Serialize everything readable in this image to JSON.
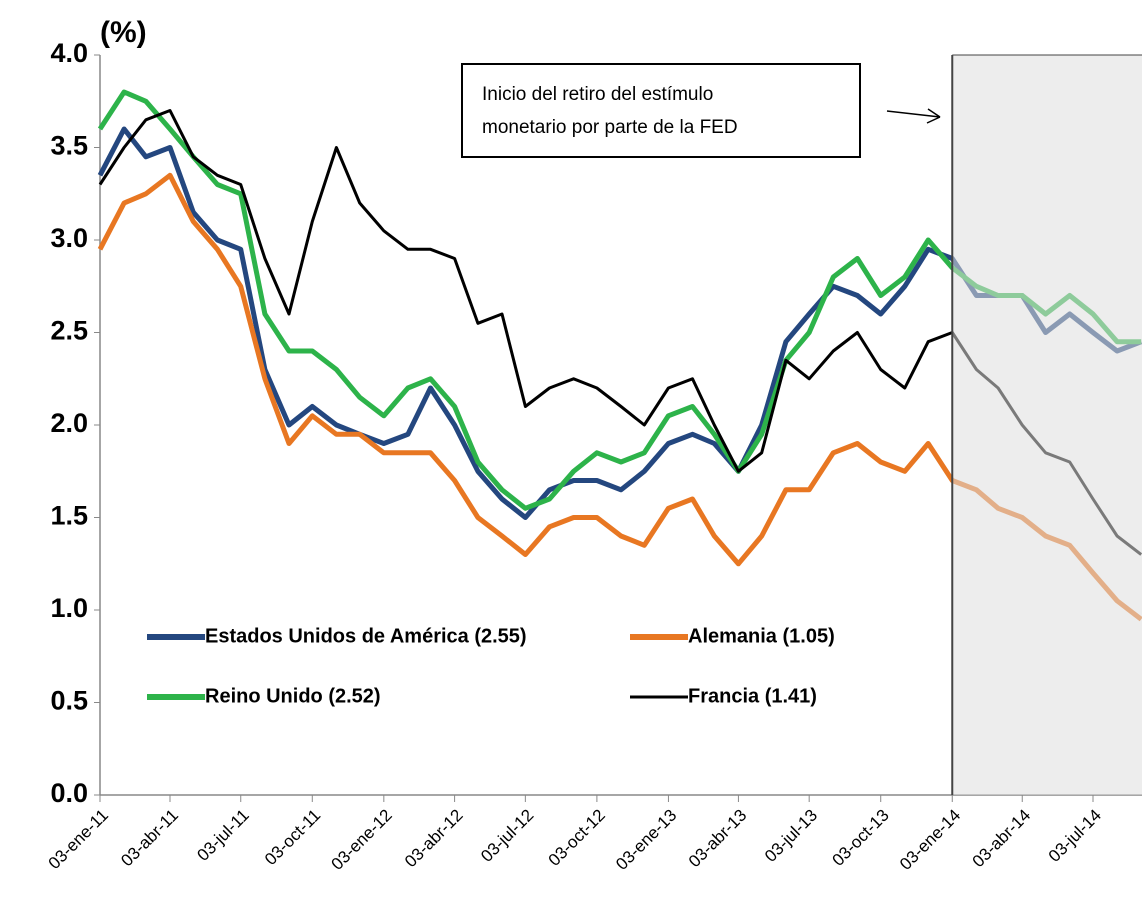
{
  "chart_data": {
    "type": "line",
    "y_label": "(%)",
    "annotation": "Inicio del retiro del estímulo monetario por parte de la FED",
    "annotation_lines": [
      "Inicio del retiro del estímulo",
      "monetario por parte de la FED"
    ],
    "shaded_from": "2014-01-03",
    "x": [
      "2011-01-03",
      "2011-02-03",
      "2011-03-03",
      "2011-04-03",
      "2011-05-03",
      "2011-06-03",
      "2011-07-03",
      "2011-08-03",
      "2011-09-03",
      "2011-10-03",
      "2011-11-03",
      "2011-12-03",
      "2012-01-03",
      "2012-02-03",
      "2012-03-03",
      "2012-04-03",
      "2012-05-03",
      "2012-06-03",
      "2012-07-03",
      "2012-08-03",
      "2012-09-03",
      "2012-10-03",
      "2012-11-03",
      "2012-12-03",
      "2013-01-03",
      "2013-02-03",
      "2013-03-03",
      "2013-04-03",
      "2013-05-03",
      "2013-06-03",
      "2013-07-03",
      "2013-08-03",
      "2013-09-03",
      "2013-10-03",
      "2013-11-03",
      "2013-12-03",
      "2014-01-03",
      "2014-02-03",
      "2014-03-03",
      "2014-04-03",
      "2014-05-03",
      "2014-06-03",
      "2014-07-03",
      "2014-08-03",
      "2014-09-03"
    ],
    "series": [
      {
        "name": "Estados Unidos de América (2.55)",
        "color": "#24477f",
        "values": [
          3.35,
          3.6,
          3.45,
          3.5,
          3.15,
          3.0,
          2.95,
          2.3,
          2.0,
          2.1,
          2.0,
          1.95,
          1.9,
          1.95,
          2.2,
          2.0,
          1.75,
          1.6,
          1.5,
          1.65,
          1.7,
          1.7,
          1.65,
          1.75,
          1.9,
          1.95,
          1.9,
          1.75,
          2.0,
          2.45,
          2.6,
          2.75,
          2.7,
          2.6,
          2.75,
          2.95,
          2.9,
          2.7,
          2.7,
          2.7,
          2.5,
          2.6,
          2.5,
          2.4,
          2.45
        ]
      },
      {
        "name": "Alemania (1.05)",
        "color": "#e87722",
        "values": [
          2.95,
          3.2,
          3.25,
          3.35,
          3.1,
          2.95,
          2.75,
          2.25,
          1.9,
          2.05,
          1.95,
          1.95,
          1.85,
          1.85,
          1.85,
          1.7,
          1.5,
          1.4,
          1.3,
          1.45,
          1.5,
          1.5,
          1.4,
          1.35,
          1.55,
          1.6,
          1.4,
          1.25,
          1.4,
          1.65,
          1.65,
          1.85,
          1.9,
          1.8,
          1.75,
          1.9,
          1.7,
          1.65,
          1.55,
          1.5,
          1.4,
          1.35,
          1.2,
          1.05,
          0.95
        ]
      },
      {
        "name": "Reino Unido (2.52)",
        "color": "#2db34a",
        "values": [
          3.6,
          3.8,
          3.75,
          3.6,
          3.45,
          3.3,
          3.25,
          2.6,
          2.4,
          2.4,
          2.3,
          2.15,
          2.05,
          2.2,
          2.25,
          2.1,
          1.8,
          1.65,
          1.55,
          1.6,
          1.75,
          1.85,
          1.8,
          1.85,
          2.05,
          2.1,
          1.95,
          1.75,
          1.95,
          2.35,
          2.5,
          2.8,
          2.9,
          2.7,
          2.8,
          3.0,
          2.85,
          2.75,
          2.7,
          2.7,
          2.6,
          2.7,
          2.6,
          2.45,
          2.45
        ]
      },
      {
        "name": "Francia (1.41)",
        "color": "#000000",
        "values": [
          3.3,
          3.5,
          3.65,
          3.7,
          3.45,
          3.35,
          3.3,
          2.9,
          2.6,
          3.1,
          3.5,
          3.2,
          3.05,
          2.95,
          2.95,
          2.9,
          2.55,
          2.6,
          2.1,
          2.2,
          2.25,
          2.2,
          2.1,
          2.0,
          2.2,
          2.25,
          2.0,
          1.75,
          1.85,
          2.35,
          2.25,
          2.4,
          2.5,
          2.3,
          2.2,
          2.45,
          2.5,
          2.3,
          2.2,
          2.0,
          1.85,
          1.8,
          1.6,
          1.4,
          1.3
        ]
      }
    ],
    "xlim": [
      "2011-01-03",
      "2014-09-04"
    ],
    "xticks": [
      {
        "value": "2011-01-03",
        "label": "03-ene-11"
      },
      {
        "value": "2011-04-03",
        "label": "03-abr-11"
      },
      {
        "value": "2011-07-03",
        "label": "03-jul-11"
      },
      {
        "value": "2011-10-03",
        "label": "03-oct-11"
      },
      {
        "value": "2012-01-03",
        "label": "03-ene-12"
      },
      {
        "value": "2012-04-03",
        "label": "03-abr-12"
      },
      {
        "value": "2012-07-03",
        "label": "03-jul-12"
      },
      {
        "value": "2012-10-03",
        "label": "03-oct-12"
      },
      {
        "value": "2013-01-03",
        "label": "03-ene-13"
      },
      {
        "value": "2013-04-03",
        "label": "03-abr-13"
      },
      {
        "value": "2013-07-03",
        "label": "03-jul-13"
      },
      {
        "value": "2013-10-03",
        "label": "03-oct-13"
      },
      {
        "value": "2014-01-03",
        "label": "03-ene-14"
      },
      {
        "value": "2014-04-03",
        "label": "03-abr-14"
      },
      {
        "value": "2014-07-03",
        "label": "03-jul-14"
      }
    ],
    "ylim": [
      0,
      4
    ],
    "yticks": [
      {
        "value": 0,
        "label": "0.0"
      },
      0.5,
      {
        "value": 1,
        "label": "1.0"
      },
      1.5,
      {
        "value": 2,
        "label": "2.0"
      },
      2.5,
      {
        "value": 3,
        "label": "3.0"
      },
      3.5,
      {
        "value": 4,
        "label": "4.0"
      }
    ],
    "grid": false
  }
}
